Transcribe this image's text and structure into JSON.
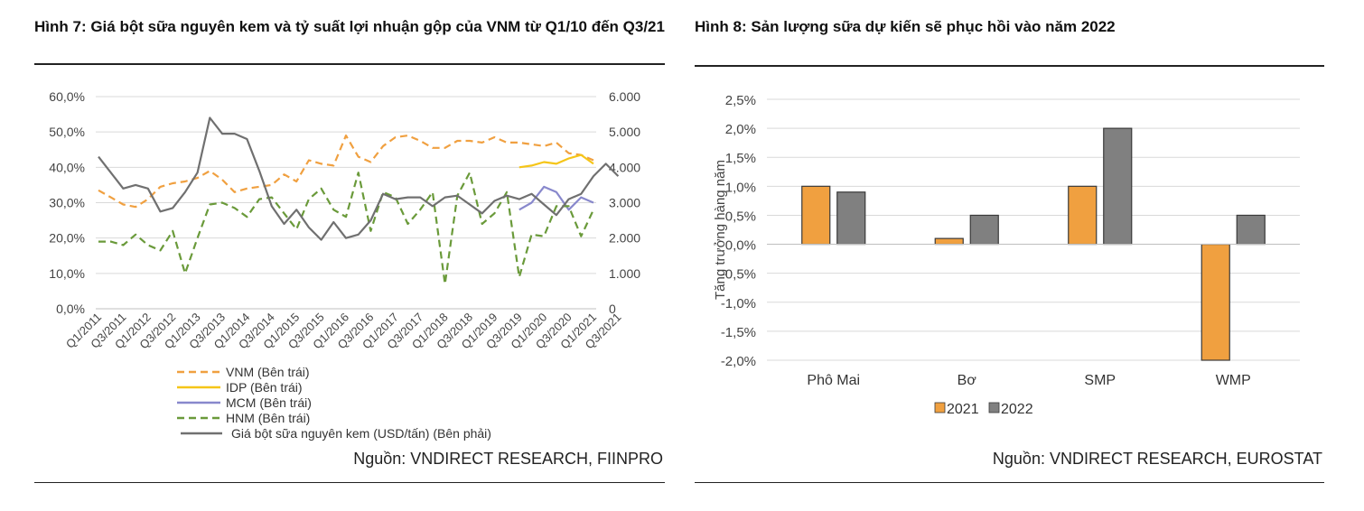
{
  "left": {
    "title": "Hình 7: Giá bột sữa nguyên kem và tỷ suất lợi nhuận gộp của VNM từ Q1/10 đến Q3/21",
    "source": "Nguồn: VNDIRECT RESEARCH, FIINPRO"
  },
  "right": {
    "title": "Hình 8: Sản lượng sữa dự kiến sẽ phục hồi vào năm 2022",
    "source": "Nguồn: VNDIRECT RESEARCH, EUROSTAT"
  },
  "chart_data": [
    {
      "type": "line",
      "title": "Giá bột sữa nguyên kem và tỷ suất lợi nhuận gộp của VNM",
      "y_left_ticks": [
        "60,0%",
        "50,0%",
        "40,0%",
        "30,0%",
        "20,0%",
        "10,0%",
        "0,0%"
      ],
      "y_right_ticks": [
        "6.000",
        "5.000",
        "4.000",
        "3.000",
        "2.000",
        "1.000",
        "0"
      ],
      "ylim_left": [
        0,
        60
      ],
      "ylim_right": [
        0,
        6000
      ],
      "x_tick_labels": [
        "Q1/2011",
        "Q3/2011",
        "Q1/2012",
        "Q3/2012",
        "Q1/2013",
        "Q3/2013",
        "Q1/2014",
        "Q3/2014",
        "Q1/2015",
        "Q3/2015",
        "Q1/2016",
        "Q3/2016",
        "Q1/2017",
        "Q3/2017",
        "Q1/2018",
        "Q3/2018",
        "Q1/2019",
        "Q3/2019",
        "Q1/2020",
        "Q3/2020",
        "Q1/2021",
        "Q3/2021"
      ],
      "series": [
        {
          "name": "VNM (Bên trái)",
          "axis": "left",
          "color": "#f0a040",
          "dash": "dashed",
          "values": [
            33.5,
            31.5,
            29.5,
            28.8,
            31,
            34.5,
            35.5,
            36,
            37,
            39,
            36.5,
            33,
            34,
            34.5,
            35,
            38,
            36,
            42,
            41,
            40.5,
            49,
            43,
            41.5,
            46,
            48.5,
            49,
            47.5,
            45.5,
            45.5,
            47.5,
            47.5,
            47,
            48.5,
            47,
            47,
            46.5,
            46,
            47,
            44,
            43.5,
            42
          ]
        },
        {
          "name": "IDP (Bên trái)",
          "axis": "left",
          "color": "#f5c518",
          "dash": "solid",
          "start_index": 34,
          "values": [
            40,
            40.5,
            41.5,
            41,
            42.5,
            43.5,
            41
          ]
        },
        {
          "name": "MCM (Bên trái)",
          "axis": "left",
          "color": "#8888cc",
          "dash": "solid",
          "start_index": 34,
          "values": [
            28,
            30,
            34.5,
            33,
            28,
            31.5,
            30
          ]
        },
        {
          "name": "HNM (Bên trái)",
          "axis": "left",
          "color": "#6a9a3a",
          "dash": "dashed",
          "values": [
            19,
            19,
            18,
            21,
            18,
            16.5,
            22,
            10,
            20,
            29.5,
            30,
            28.5,
            26,
            31,
            31.5,
            27,
            22.5,
            31,
            34,
            28,
            26,
            38.5,
            22,
            33,
            31.5,
            24,
            28,
            33,
            7,
            32,
            38.5,
            24,
            27,
            33,
            9,
            21,
            20.5,
            29,
            29,
            20.5,
            28
          ]
        },
        {
          "name": "Giá bột sữa nguyên kem (USD/tấn) (Bên phải)",
          "axis": "right",
          "color": "#707070",
          "dash": "solid",
          "values": [
            4300,
            3850,
            3400,
            3500,
            3400,
            2750,
            2850,
            3300,
            3850,
            5400,
            4950,
            4950,
            4800,
            3900,
            2900,
            2400,
            2800,
            2300,
            1950,
            2450,
            2000,
            2100,
            2500,
            3250,
            3100,
            3150,
            3150,
            2900,
            3150,
            3200,
            2950,
            2700,
            3050,
            3200,
            3100,
            3250,
            2950,
            2650,
            3100,
            3250,
            3750,
            4100,
            3750
          ]
        }
      ]
    },
    {
      "type": "bar",
      "title": "Sản lượng sữa dự kiến sẽ phục hồi vào năm 2022",
      "categories": [
        "Phô Mai",
        "Bơ",
        "SMP",
        "WMP"
      ],
      "series": [
        {
          "name": "2021",
          "color": "#f0a040",
          "values": [
            1.0,
            0.1,
            1.0,
            -2.0
          ]
        },
        {
          "name": "2022",
          "color": "#808080",
          "values": [
            0.9,
            0.5,
            2.0,
            0.5
          ]
        }
      ],
      "ylabel": "Tăng trưởng hàng năm",
      "y_ticks": [
        "2,5%",
        "2,0%",
        "1,5%",
        "1,0%",
        "0,5%",
        "0,0%",
        "-0,5%",
        "-1,0%",
        "-1,5%",
        "-2,0%"
      ],
      "ylim": [
        -2.0,
        2.5
      ]
    }
  ]
}
